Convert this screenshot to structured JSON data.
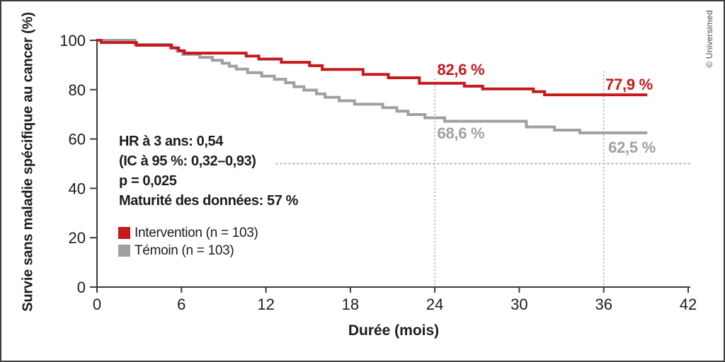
{
  "credit": "© Universimed",
  "colors": {
    "intervention": "#c31b1c",
    "temoin": "#a0a0a0",
    "axis": "#3c3c3c",
    "text": "#1c1c1c",
    "guide": "#9b9b9b",
    "frame_border": "#3d3d3d",
    "background": "#ffffff"
  },
  "stats": {
    "lines": [
      "HR à 3 ans: 0,54",
      "(IC à 95 %: 0,32–0,93)",
      "p = 0,025",
      "Maturité des données: 57 %"
    ]
  },
  "legend": {
    "items": [
      {
        "label": "Intervention (n = 103)",
        "color": "#c31b1c"
      },
      {
        "label": "Témoin (n = 103)",
        "color": "#a0a0a0"
      }
    ]
  },
  "chart_data": {
    "type": "line",
    "subtype": "kaplan-meier-step",
    "title": "",
    "xlabel": "Durée (mois)",
    "ylabel": "Survie sans maladie spécifique au cancer (%)",
    "xlim": [
      0,
      42
    ],
    "ylim": [
      0,
      100
    ],
    "x_ticks": [
      0,
      6,
      12,
      18,
      24,
      30,
      36,
      42
    ],
    "y_ticks": [
      0,
      20,
      40,
      60,
      80,
      100
    ],
    "grid": false,
    "legend_position": "inside-left-bottom",
    "series": [
      {
        "name": "Intervention (n = 103)",
        "color": "#c31b1c",
        "end_t": 39.1,
        "steps": [
          [
            0,
            100
          ],
          [
            0.3,
            99.1
          ],
          [
            2.8,
            98.0
          ],
          [
            5.3,
            96.9
          ],
          [
            5.8,
            95.8
          ],
          [
            6.2,
            94.8
          ],
          [
            10.6,
            93.6
          ],
          [
            11.5,
            92.4
          ],
          [
            13.1,
            91.1
          ],
          [
            15.1,
            89.7
          ],
          [
            16.0,
            88.2
          ],
          [
            18.9,
            86.2
          ],
          [
            20.7,
            84.8
          ],
          [
            22.9,
            82.6
          ],
          [
            26.1,
            81.4
          ],
          [
            27.4,
            80.3
          ],
          [
            31.0,
            79.2
          ],
          [
            31.8,
            77.9
          ]
        ],
        "annotations": [
          {
            "text": "82,6 %",
            "refers_to_month": 24,
            "label_t": 25.85,
            "label_pct": 88.2
          },
          {
            "text": "77,9 %",
            "refers_to_month": 36,
            "label_t": 37.8,
            "label_pct": 82.2
          }
        ]
      },
      {
        "name": "Témoin (n = 103)",
        "color": "#a0a0a0",
        "end_t": 39.1,
        "steps": [
          [
            0,
            100
          ],
          [
            2.7,
            98.3
          ],
          [
            5.2,
            96.9
          ],
          [
            5.7,
            95.6
          ],
          [
            6.1,
            94.3
          ],
          [
            7.3,
            93.1
          ],
          [
            8.2,
            91.9
          ],
          [
            8.9,
            90.7
          ],
          [
            9.4,
            89.5
          ],
          [
            9.9,
            88.3
          ],
          [
            10.7,
            86.9
          ],
          [
            11.7,
            85.5
          ],
          [
            12.6,
            84.2
          ],
          [
            13.4,
            82.8
          ],
          [
            14.0,
            81.2
          ],
          [
            14.7,
            79.8
          ],
          [
            15.6,
            78.3
          ],
          [
            16.2,
            76.9
          ],
          [
            17.2,
            75.5
          ],
          [
            18.3,
            74.1
          ],
          [
            20.3,
            72.7
          ],
          [
            21.3,
            71.3
          ],
          [
            22.1,
            69.9
          ],
          [
            23.3,
            68.6
          ],
          [
            24.7,
            67.2
          ],
          [
            30.5,
            64.9
          ],
          [
            32.5,
            63.6
          ],
          [
            34.3,
            62.5
          ]
        ],
        "annotations": [
          {
            "text": "68,6 %",
            "refers_to_month": 24,
            "label_t": 25.85,
            "label_pct": 62.5
          },
          {
            "text": "62,5 %",
            "refers_to_month": 36,
            "label_t": 38.0,
            "label_pct": 56.7
          }
        ]
      }
    ],
    "reference_lines": {
      "horizontal": {
        "pct": 50,
        "from_t": 12.7,
        "to_t": 42.2
      },
      "verticals": [
        {
          "t": 24,
          "top_pct": 84.5
        },
        {
          "t": 36,
          "top_pct": 87.5
        }
      ]
    }
  }
}
